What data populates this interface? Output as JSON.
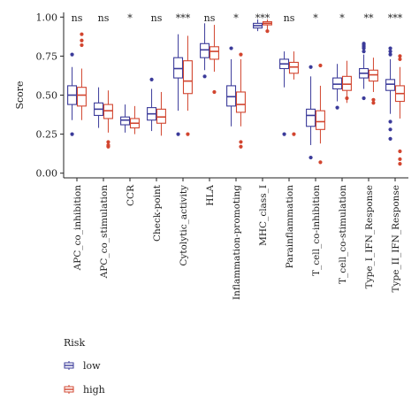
{
  "chart_data": {
    "type": "boxplot",
    "ylabel": "Score",
    "ylim": [
      -0.03,
      1.03
    ],
    "yticks": [
      "0.00",
      "0.25",
      "0.50",
      "0.75",
      "1.00"
    ],
    "ytick_values": [
      0,
      0.25,
      0.5,
      0.75,
      1.0
    ],
    "categories": [
      "APC_co_inhibition",
      "APC_co_stimulation",
      "CCR",
      "Check-point",
      "Cytolytic_activity",
      "HLA",
      "Inflammation-promoting",
      "MHC_class_I",
      "Parainflammation",
      "T_cell_co-inhibition",
      "T_cell_co-stimulation",
      "Type_I_IFN_Response",
      "Type_II_IFN_Response"
    ],
    "significance": [
      "ns",
      "ns",
      "*",
      "ns",
      "***",
      "ns",
      "*",
      "***",
      "ns",
      "*",
      "*",
      "**",
      "***"
    ],
    "legend": {
      "title": "Risk",
      "placement": "bottom-left",
      "entries": [
        {
          "name": "low",
          "color": "#3b3b9a"
        },
        {
          "name": "high",
          "color": "#d2452f"
        }
      ]
    },
    "series": [
      {
        "name": "low",
        "color": "#3b3b9a",
        "boxes": [
          {
            "min": 0.34,
            "q1": 0.44,
            "median": 0.5,
            "q3": 0.56,
            "max": 0.68,
            "outliers": [
              0.25,
              0.76
            ]
          },
          {
            "min": 0.29,
            "q1": 0.37,
            "median": 0.41,
            "q3": 0.45,
            "max": 0.55,
            "outliers": []
          },
          {
            "min": 0.26,
            "q1": 0.31,
            "median": 0.34,
            "q3": 0.36,
            "max": 0.44,
            "outliers": []
          },
          {
            "min": 0.27,
            "q1": 0.34,
            "median": 0.38,
            "q3": 0.42,
            "max": 0.54,
            "outliers": [
              0.6
            ]
          },
          {
            "min": 0.4,
            "q1": 0.61,
            "median": 0.67,
            "q3": 0.74,
            "max": 0.89,
            "outliers": [
              0.25
            ]
          },
          {
            "min": 0.66,
            "q1": 0.74,
            "median": 0.79,
            "q3": 0.83,
            "max": 0.96,
            "outliers": [
              0.62
            ]
          },
          {
            "min": 0.3,
            "q1": 0.43,
            "median": 0.49,
            "q3": 0.56,
            "max": 0.73,
            "outliers": [
              0.8
            ]
          },
          {
            "min": 0.91,
            "q1": 0.93,
            "median": 0.945,
            "q3": 0.96,
            "max": 0.985,
            "outliers": []
          },
          {
            "min": 0.55,
            "q1": 0.67,
            "median": 0.7,
            "q3": 0.73,
            "max": 0.78,
            "outliers": [
              0.25
            ]
          },
          {
            "min": 0.18,
            "q1": 0.3,
            "median": 0.37,
            "q3": 0.41,
            "max": 0.62,
            "outliers": [
              0.1,
              0.68
            ]
          },
          {
            "min": 0.46,
            "q1": 0.54,
            "median": 0.57,
            "q3": 0.61,
            "max": 0.7,
            "outliers": [
              0.42
            ]
          },
          {
            "min": 0.54,
            "q1": 0.61,
            "median": 0.64,
            "q3": 0.67,
            "max": 0.76,
            "outliers": [
              0.48,
              0.78,
              0.8,
              0.81,
              0.82,
              0.83
            ]
          },
          {
            "min": 0.38,
            "q1": 0.53,
            "median": 0.57,
            "q3": 0.6,
            "max": 0.73,
            "outliers": [
              0.22,
              0.28,
              0.33,
              0.76,
              0.78,
              0.8
            ]
          }
        ]
      },
      {
        "name": "high",
        "color": "#d2452f",
        "boxes": [
          {
            "min": 0.34,
            "q1": 0.43,
            "median": 0.5,
            "q3": 0.55,
            "max": 0.67,
            "outliers": [
              0.82,
              0.85,
              0.89
            ]
          },
          {
            "min": 0.26,
            "q1": 0.35,
            "median": 0.4,
            "q3": 0.44,
            "max": 0.53,
            "outliers": [
              0.17,
              0.18,
              0.2
            ]
          },
          {
            "min": 0.25,
            "q1": 0.29,
            "median": 0.32,
            "q3": 0.35,
            "max": 0.43,
            "outliers": []
          },
          {
            "min": 0.24,
            "q1": 0.32,
            "median": 0.36,
            "q3": 0.41,
            "max": 0.52,
            "outliers": []
          },
          {
            "min": 0.4,
            "q1": 0.51,
            "median": 0.59,
            "q3": 0.72,
            "max": 0.88,
            "outliers": [
              0.25
            ]
          },
          {
            "min": 0.65,
            "q1": 0.73,
            "median": 0.78,
            "q3": 0.81,
            "max": 0.95,
            "outliers": [
              0.52
            ]
          },
          {
            "min": 0.3,
            "q1": 0.39,
            "median": 0.44,
            "q3": 0.52,
            "max": 0.73,
            "outliers": [
              0.17,
              0.2,
              0.76
            ]
          },
          {
            "min": 0.92,
            "q1": 0.95,
            "median": 0.96,
            "q3": 0.97,
            "max": 0.985,
            "outliers": [
              0.91
            ]
          },
          {
            "min": 0.6,
            "q1": 0.64,
            "median": 0.68,
            "q3": 0.71,
            "max": 0.78,
            "outliers": [
              0.25
            ]
          },
          {
            "min": 0.19,
            "q1": 0.28,
            "median": 0.33,
            "q3": 0.4,
            "max": 0.56,
            "outliers": [
              0.07,
              0.69
            ]
          },
          {
            "min": 0.45,
            "q1": 0.53,
            "median": 0.57,
            "q3": 0.62,
            "max": 0.72,
            "outliers": [
              0.48
            ]
          },
          {
            "min": 0.52,
            "q1": 0.59,
            "median": 0.63,
            "q3": 0.66,
            "max": 0.74,
            "outliers": [
              0.45,
              0.47
            ]
          },
          {
            "min": 0.35,
            "q1": 0.46,
            "median": 0.51,
            "q3": 0.56,
            "max": 0.68,
            "outliers": [
              0.06,
              0.09,
              0.14,
              0.73,
              0.75
            ]
          }
        ]
      }
    ]
  }
}
